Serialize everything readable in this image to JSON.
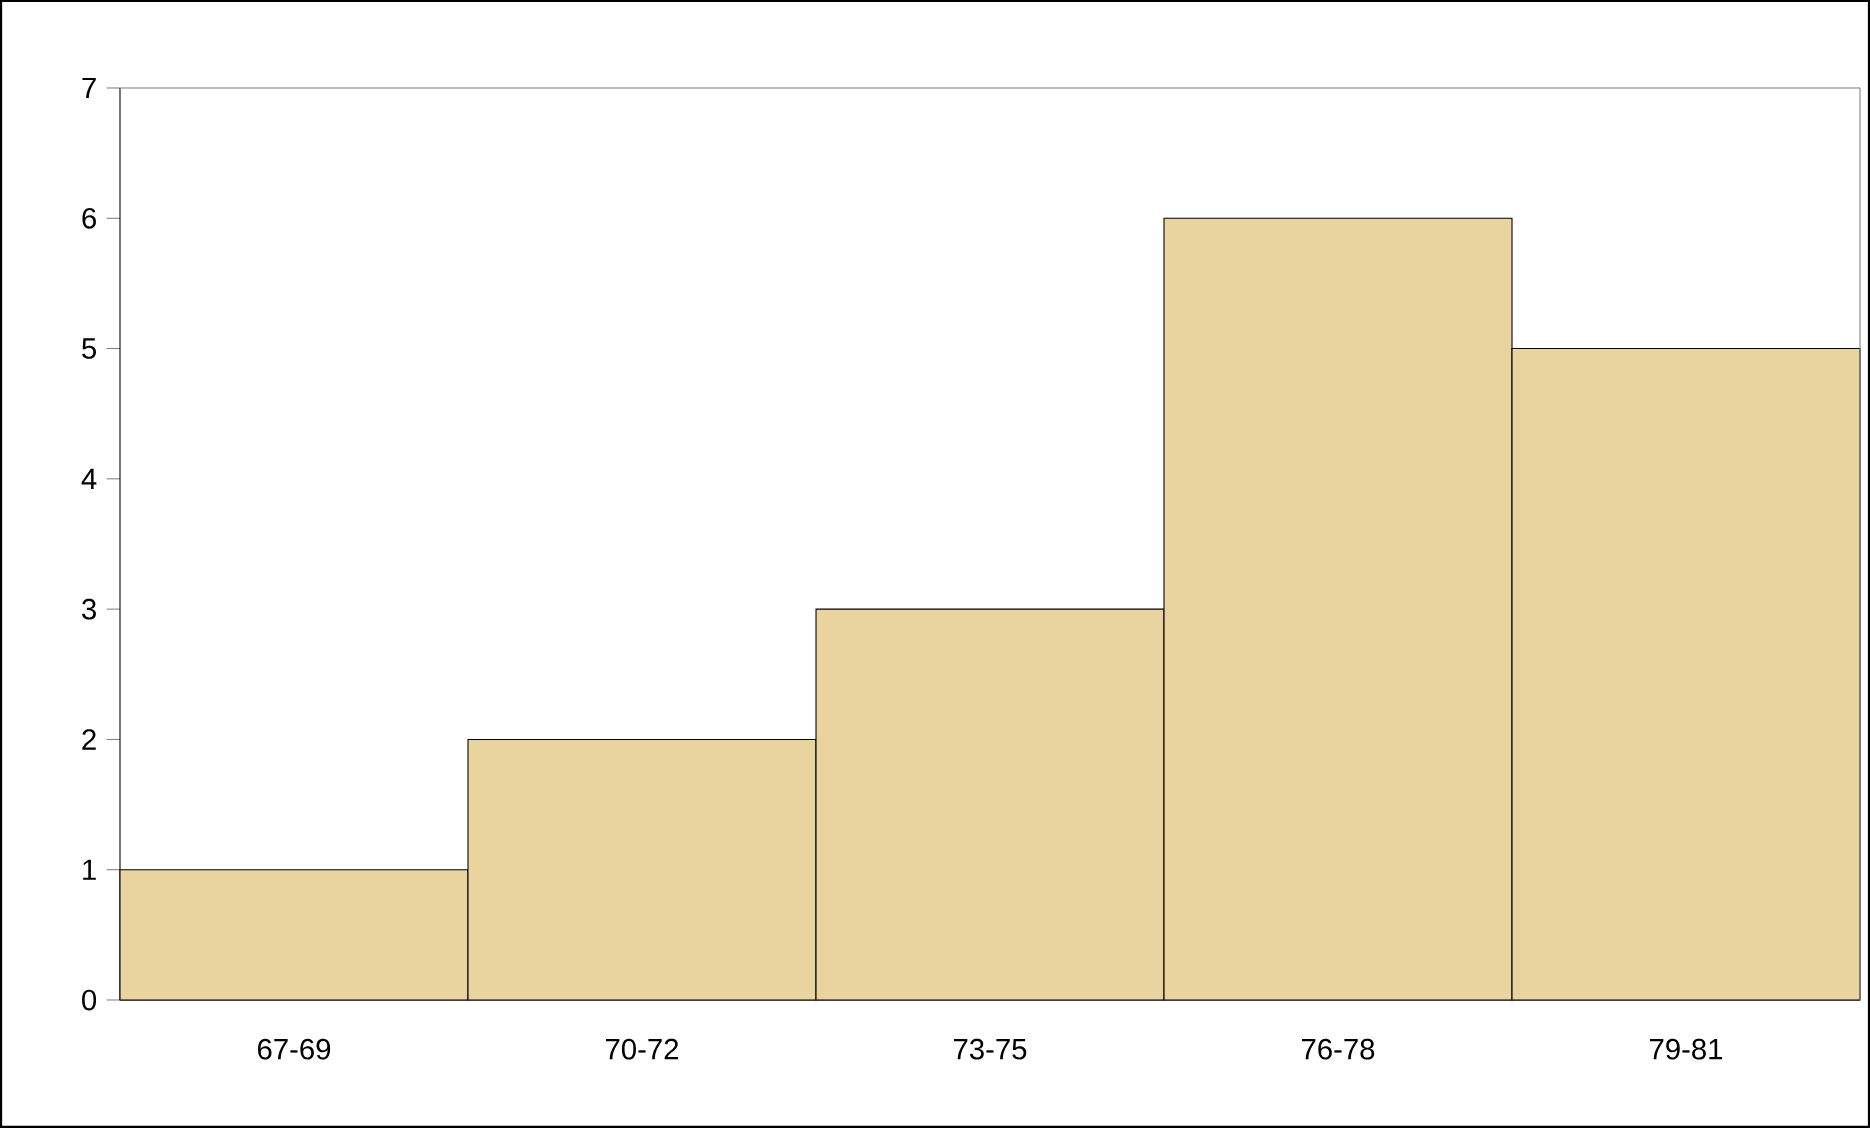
{
  "chart_data": {
    "type": "bar",
    "categories": [
      "67-69",
      "70-72",
      "73-75",
      "76-78",
      "79-81"
    ],
    "values": [
      1,
      2,
      3,
      6,
      5
    ],
    "color": "#e9d39f",
    "ylim": [
      0,
      7
    ],
    "yticks": [
      0,
      1,
      2,
      3,
      4,
      5,
      6,
      7
    ]
  }
}
